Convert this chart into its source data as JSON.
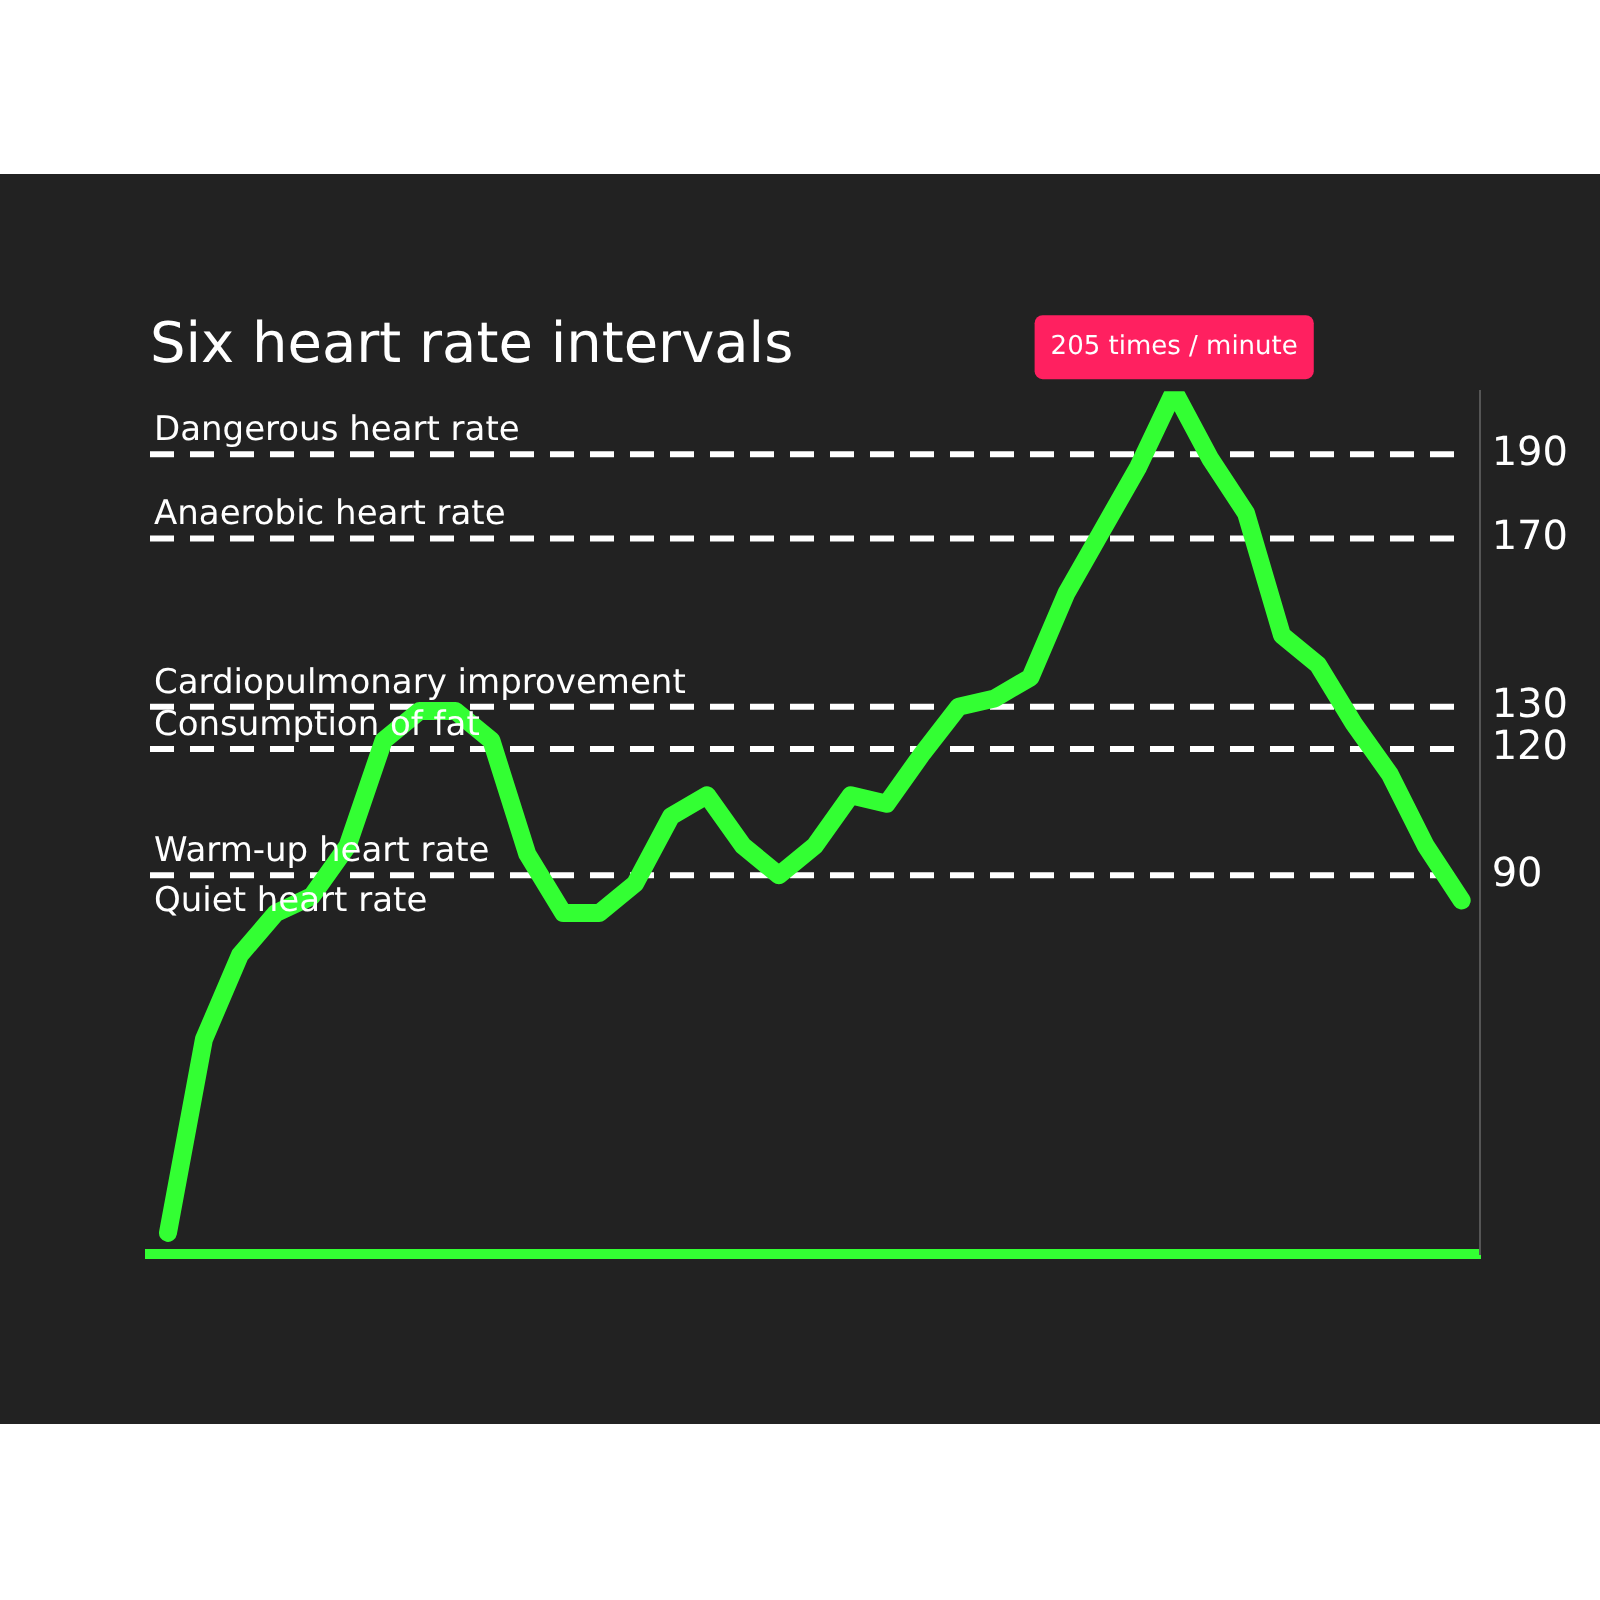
{
  "chart_data": {
    "type": "line",
    "title": "Six heart rate intervals",
    "categories": [
      null,
      null,
      null,
      null,
      null,
      null,
      null,
      null,
      null,
      null,
      null,
      null,
      null,
      null,
      null,
      null,
      null,
      null,
      null,
      null,
      null,
      null,
      null,
      null,
      null,
      null,
      null,
      null,
      null,
      null,
      null,
      null,
      null,
      null,
      null,
      null,
      null
    ],
    "series": [
      {
        "color": "#33ff33",
        "values": [
          5,
          51,
          71,
          81,
          85,
          97,
          122,
          129,
          129,
          122,
          95,
          81,
          81,
          88,
          104,
          109,
          97,
          90,
          97,
          109,
          107,
          119,
          130,
          132,
          137,
          157,
          172,
          187,
          205,
          189,
          176,
          147,
          140,
          126,
          114,
          97,
          84
        ]
      }
    ],
    "ylim": [
      0,
      205
    ],
    "yticks": [
      90,
      120,
      130,
      170,
      190
    ],
    "tick_labels": "y",
    "marker": "none",
    "line_style": "solid",
    "ref_lines": [
      {
        "axis": "y",
        "value": 190,
        "label": "Dangerous heart rate",
        "color": "#ffffff",
        "line_style": "dashed"
      },
      {
        "axis": "y",
        "value": 170,
        "label": "Anaerobic heart rate",
        "color": "#ffffff",
        "line_style": "dashed"
      },
      {
        "axis": "y",
        "value": 130,
        "label": "Cardiopulmonary improvement",
        "color": "#ffffff",
        "line_style": "dashed"
      },
      {
        "axis": "y",
        "value": 120,
        "label": "Consumption of fat",
        "color": "#ffffff",
        "line_style": "dashed"
      },
      {
        "axis": "y",
        "value": 90,
        "label": "Warm-up heart rate",
        "color": "#ffffff",
        "line_style": "dashed"
      }
    ],
    "annotations": [
      {
        "text": "205 times / minute",
        "y": 205
      },
      "Quiet heart rate"
    ]
  }
}
